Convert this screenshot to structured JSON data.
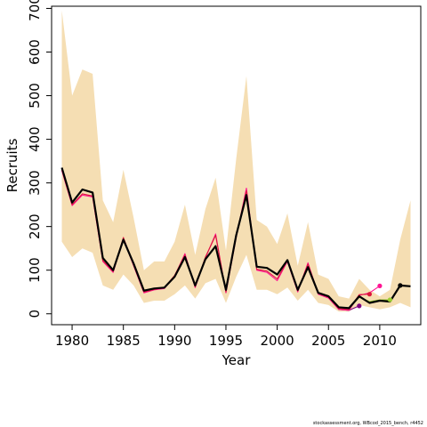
{
  "chart_data": {
    "type": "line",
    "xlabel": "Year",
    "ylabel": "Recruits",
    "xlim": [
      1978,
      2014
    ],
    "ylim": [
      -25,
      705
    ],
    "x_ticks": [
      1980,
      1985,
      1990,
      1995,
      2000,
      2005,
      2010
    ],
    "y_ticks": [
      0,
      100,
      200,
      300,
      400,
      500,
      600,
      700
    ],
    "y_ticks_rotated": true,
    "grid": false,
    "band_color": "#F5DEB3",
    "band": {
      "x": [
        1979,
        1980,
        1981,
        1982,
        1983,
        1984,
        1985,
        1986,
        1987,
        1988,
        1989,
        1990,
        1991,
        1992,
        1993,
        1994,
        1995,
        1996,
        1997,
        1998,
        1999,
        2000,
        2001,
        2002,
        2003,
        2004,
        2005,
        2006,
        2007,
        2008,
        2009,
        2010,
        2011,
        2012,
        2013
      ],
      "upper": [
        695,
        500,
        560,
        550,
        260,
        210,
        330,
        220,
        100,
        120,
        120,
        165,
        250,
        135,
        240,
        312,
        145,
        355,
        545,
        215,
        200,
        160,
        230,
        110,
        210,
        90,
        80,
        40,
        35,
        80,
        55,
        40,
        55,
        170,
        260
      ],
      "lower": [
        165,
        130,
        150,
        140,
        65,
        55,
        90,
        65,
        25,
        30,
        30,
        45,
        65,
        35,
        70,
        80,
        25,
        85,
        135,
        55,
        55,
        45,
        60,
        30,
        55,
        25,
        20,
        5,
        5,
        20,
        15,
        10,
        15,
        25,
        15
      ]
    },
    "series": [
      {
        "color": "#000000",
        "x": [
          1979,
          1980,
          1981,
          1982,
          1983,
          1984,
          1985,
          1986,
          1987,
          1988,
          1989,
          1990,
          1991,
          1992,
          1993,
          1994,
          1995,
          1996,
          1997,
          1998,
          1999,
          2000,
          2001,
          2002,
          2003,
          2004,
          2005,
          2006,
          2007,
          2008,
          2009,
          2010,
          2011,
          2012,
          2013
        ],
        "values": [
          335,
          255,
          285,
          278,
          128,
          100,
          170,
          115,
          53,
          58,
          60,
          85,
          130,
          65,
          125,
          155,
          55,
          180,
          272,
          108,
          105,
          90,
          123,
          55,
          107,
          48,
          40,
          15,
          13,
          40,
          25,
          30,
          28,
          65,
          63
        ]
      },
      {
        "color": "#DC143C",
        "x": [
          1979,
          1980,
          1981,
          1982,
          1983,
          1984,
          1985,
          1986,
          1987,
          1988,
          1989,
          1990,
          1991,
          1992,
          1993,
          1994,
          1995,
          1996,
          1997,
          1998,
          1999,
          2000,
          2001,
          2002,
          2003,
          2004,
          2005,
          2006,
          2007,
          2008,
          2009
        ],
        "values": [
          330,
          250,
          275,
          270,
          122,
          97,
          175,
          112,
          50,
          56,
          60,
          88,
          135,
          62,
          130,
          180,
          50,
          178,
          282,
          102,
          98,
          80,
          122,
          52,
          114,
          47,
          38,
          12,
          10,
          44,
          45
        ]
      },
      {
        "color": "#FF1493",
        "x": [
          1979,
          1980,
          1981,
          1982,
          1983,
          1984,
          1985,
          1986,
          1987,
          1988,
          1989,
          1990,
          1991,
          1992,
          1993,
          1994,
          1995,
          1996,
          1997,
          1998,
          1999,
          2000,
          2001,
          2002,
          2003,
          2004,
          2005,
          2006,
          2007,
          2008,
          2009,
          2010
        ],
        "values": [
          328,
          248,
          272,
          268,
          120,
          95,
          172,
          110,
          48,
          55,
          58,
          86,
          138,
          60,
          128,
          183,
          48,
          175,
          288,
          100,
          95,
          76,
          120,
          50,
          117,
          45,
          36,
          10,
          8,
          42,
          48,
          64
        ]
      },
      {
        "color": "#9ACD32",
        "x": [
          2007,
          2008,
          2009,
          2010,
          2011
        ],
        "values": [
          12,
          38,
          28,
          32,
          32
        ]
      },
      {
        "color": "#800080",
        "x": [
          2005,
          2006,
          2007,
          2008
        ],
        "values": [
          38,
          10,
          8,
          18
        ]
      }
    ],
    "end_points": [
      {
        "color": "#800080",
        "x": 2008,
        "value": 18
      },
      {
        "color": "#DC143C",
        "x": 2009,
        "value": 45
      },
      {
        "color": "#FF1493",
        "x": 2010,
        "value": 64
      },
      {
        "color": "#9ACD32",
        "x": 2011,
        "value": 32
      },
      {
        "color": "#000000",
        "x": 2012,
        "value": 65
      }
    ]
  },
  "credit": "stockassessment.org, WBcod_2015_bench, r4452"
}
